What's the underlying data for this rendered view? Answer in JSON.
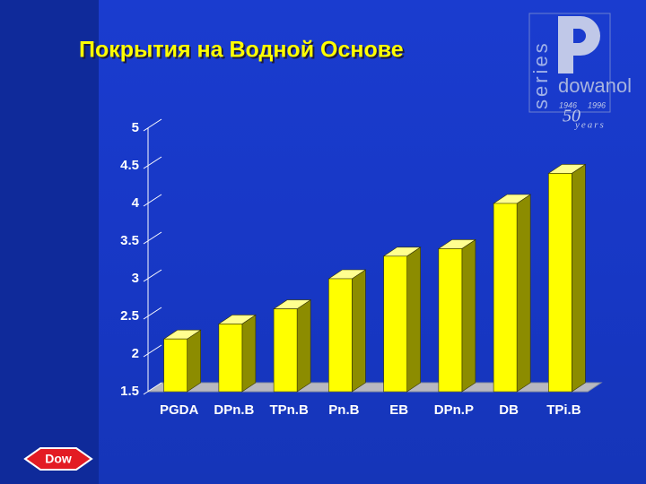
{
  "chart_data": {
    "type": "bar3d",
    "title": "Покрытия на Водной Основе",
    "categories": [
      "PGDA",
      "DPn.B",
      "TPn.B",
      "Pn.B",
      "EB",
      "DPn.P",
      "DB",
      "TPi.B"
    ],
    "values": [
      2.2,
      2.4,
      2.6,
      3.0,
      3.3,
      3.4,
      4.0,
      4.4
    ],
    "color": "#ffff00",
    "ylim": [
      1.5,
      5
    ],
    "yticks": [
      1.5,
      2,
      2.5,
      3,
      3.5,
      4,
      4.5,
      5
    ]
  },
  "logo": {
    "series": "series",
    "product": "dowanol",
    "year_start": "1946",
    "year_end": "1996",
    "anniversary": "50",
    "years": "years"
  },
  "footer": {
    "brand": "Dow"
  }
}
